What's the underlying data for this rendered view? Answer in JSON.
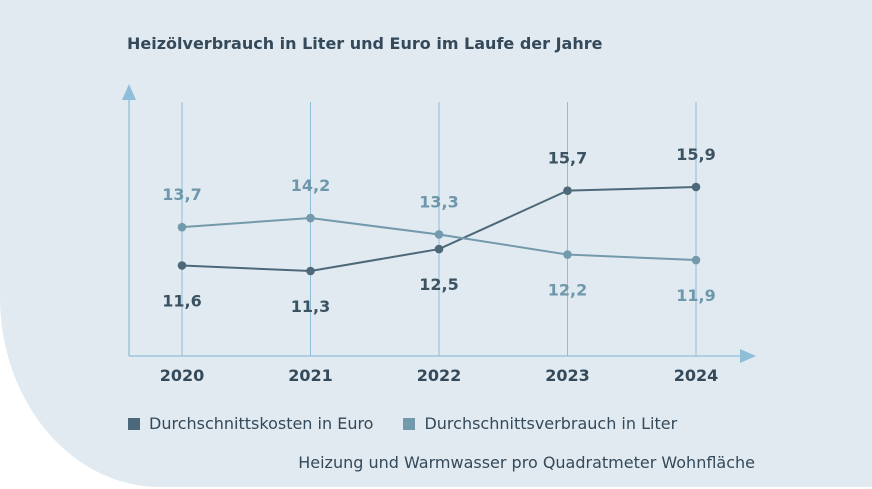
{
  "chart_data": {
    "type": "line",
    "title": "Heizölverbrauch in Liter und Euro im Laufe der Jahre",
    "categories": [
      "2020",
      "2021",
      "2022",
      "2023",
      "2024"
    ],
    "series": [
      {
        "name": "Durchschnittskosten in Euro",
        "values": [
          11.6,
          11.3,
          12.5,
          15.7,
          15.9
        ],
        "labels": [
          "11,6",
          "11,3",
          "12,5",
          "15,7",
          "15,9"
        ],
        "label_pos": [
          "below",
          "below",
          "below",
          "above",
          "above"
        ],
        "color": "#4d6878",
        "label_color": "#3b5262"
      },
      {
        "name": "Durchschnittsverbrauch in Liter",
        "values": [
          13.7,
          14.2,
          13.3,
          12.2,
          11.9
        ],
        "labels": [
          "13,7",
          "14,2",
          "13,3",
          "12,2",
          "11,9"
        ],
        "label_pos": [
          "above",
          "above",
          "above",
          "below",
          "below"
        ],
        "color": "#7399ac",
        "label_color": "#6e97ab"
      }
    ],
    "grid": "vertical",
    "legend": "bottom",
    "axis_color": "#8fbfd8",
    "note": "Heizung und Warmwasser pro Quadratmeter Wohnfläche"
  }
}
